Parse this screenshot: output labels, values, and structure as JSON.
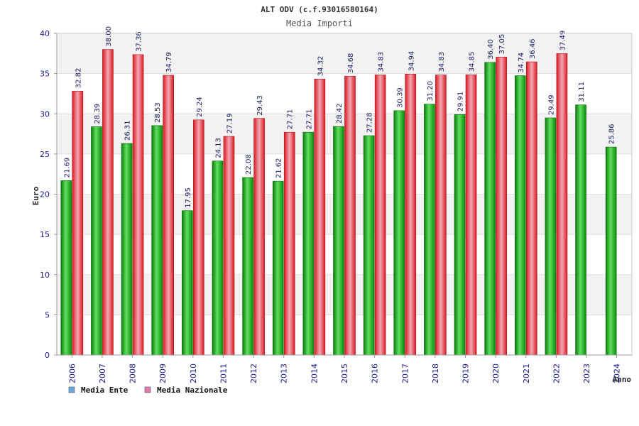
{
  "chart_data": {
    "type": "bar",
    "title": "ALT ODV (c.f.93016580164)",
    "subtitle": "Media Importi",
    "xlabel": "Anno",
    "ylabel": "Euro",
    "ylim": [
      0,
      40
    ],
    "yticks": [
      0,
      5,
      10,
      15,
      20,
      25,
      30,
      35,
      40
    ],
    "grid": true,
    "legend_position": "bottom-left",
    "categories": [
      "2006",
      "2007",
      "2008",
      "2009",
      "2010",
      "2011",
      "2012",
      "2013",
      "2014",
      "2015",
      "2016",
      "2017",
      "2018",
      "2019",
      "2020",
      "2021",
      "2022",
      "2023",
      "2024"
    ],
    "series": [
      {
        "name": "Media Ente",
        "legend_color": "#6aa5e0",
        "bar_color": "#1faa1f",
        "values": [
          21.69,
          28.39,
          26.31,
          28.53,
          17.95,
          24.13,
          22.08,
          21.62,
          27.71,
          28.42,
          27.28,
          30.39,
          31.2,
          29.91,
          36.4,
          34.74,
          29.49,
          31.11,
          25.86
        ],
        "labels": [
          "21.69",
          "28.39",
          "26.31",
          "28.53",
          "17.95",
          "24.13",
          "22.08",
          "21.62",
          "27.71",
          "28.42",
          "27.28",
          "30.39",
          "31.20",
          "29.91",
          "36.40",
          "34.74",
          "29.49",
          "31.11",
          "25.86"
        ]
      },
      {
        "name": "Media Nazionale",
        "legend_color": "#e07aa8",
        "bar_color": "#e8202a",
        "values": [
          32.82,
          38.0,
          37.36,
          34.79,
          29.24,
          27.19,
          29.43,
          27.71,
          34.32,
          34.68,
          34.83,
          34.94,
          34.83,
          34.85,
          37.05,
          36.46,
          37.49,
          null,
          null
        ],
        "labels": [
          "32.82",
          "38.00",
          "37.36",
          "34.79",
          "29.24",
          "27.19",
          "29.43",
          "27.71",
          "34.32",
          "34.68",
          "34.83",
          "34.94",
          "34.83",
          "34.85",
          "37.05",
          "36.46",
          "37.49",
          "",
          ""
        ]
      }
    ]
  }
}
